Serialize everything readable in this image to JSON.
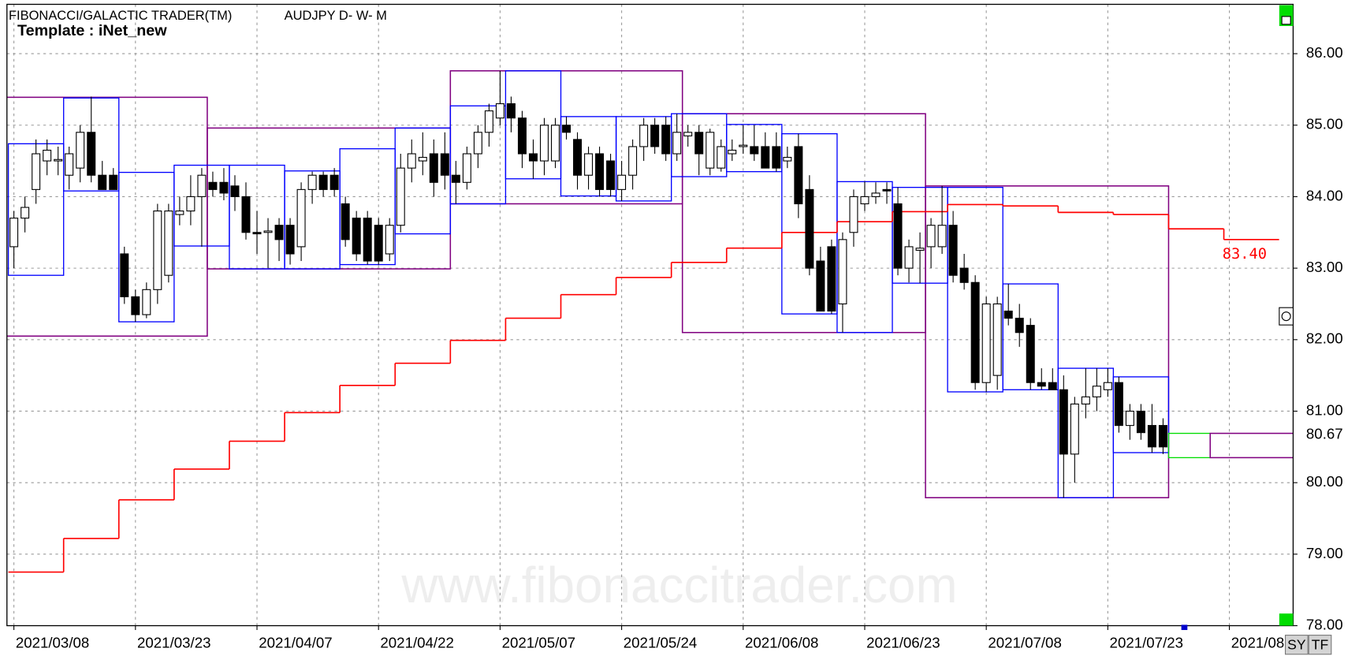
{
  "header": {
    "title": "FIBONACCI/GALACTIC TRADER(TM)",
    "symbol": "AUDJPY D- W- M",
    "template": "Template : iNet_new"
  },
  "watermark": "www.fibonaccitrader.com",
  "buttons": [
    "SY",
    "TF"
  ],
  "chart_data": {
    "type": "candlestick",
    "candles": [
      [
        83.3,
        83.8,
        83.0,
        83.7
      ],
      [
        83.7,
        84.0,
        83.5,
        83.85
      ],
      [
        84.1,
        84.8,
        83.9,
        84.6
      ],
      [
        84.5,
        84.8,
        84.3,
        84.65
      ],
      [
        84.5,
        84.7,
        84.3,
        84.52
      ],
      [
        84.3,
        84.7,
        84.1,
        84.6
      ],
      [
        84.4,
        85.0,
        84.2,
        84.9
      ],
      [
        84.9,
        85.4,
        84.2,
        84.3
      ],
      [
        84.3,
        84.5,
        84.1,
        84.1
      ],
      [
        84.3,
        84.4,
        84.1,
        84.1
      ],
      [
        83.2,
        83.3,
        82.5,
        82.6
      ],
      [
        82.6,
        82.7,
        82.25,
        82.35
      ],
      [
        82.35,
        82.8,
        82.3,
        82.7
      ],
      [
        82.7,
        83.9,
        82.5,
        83.8
      ],
      [
        82.9,
        83.9,
        82.8,
        83.8
      ],
      [
        83.75,
        84.0,
        83.6,
        83.8
      ],
      [
        83.8,
        84.3,
        83.6,
        84.0
      ],
      [
        84.0,
        84.4,
        83.3,
        84.3
      ],
      [
        84.2,
        84.35,
        84.0,
        84.1
      ],
      [
        84.2,
        84.4,
        83.95,
        84.05
      ],
      [
        84.15,
        84.3,
        83.8,
        84.0
      ],
      [
        84.0,
        84.2,
        83.4,
        83.5
      ],
      [
        83.5,
        83.8,
        83.2,
        83.48
      ],
      [
        83.5,
        83.7,
        83.0,
        83.52
      ],
      [
        83.6,
        83.7,
        83.1,
        83.4
      ],
      [
        83.6,
        83.7,
        83.05,
        83.2
      ],
      [
        83.3,
        84.2,
        83.1,
        84.1
      ],
      [
        84.1,
        84.35,
        83.9,
        84.3
      ],
      [
        84.3,
        84.35,
        84.0,
        84.1
      ],
      [
        84.3,
        84.4,
        84.0,
        84.1
      ],
      [
        83.9,
        84.0,
        83.3,
        83.4
      ],
      [
        83.7,
        83.8,
        83.1,
        83.2
      ],
      [
        83.7,
        83.8,
        83.05,
        83.1
      ],
      [
        83.6,
        83.7,
        83.05,
        83.1
      ],
      [
        83.2,
        83.7,
        83.1,
        83.6
      ],
      [
        83.6,
        84.6,
        83.5,
        84.4
      ],
      [
        84.4,
        84.8,
        84.2,
        84.6
      ],
      [
        84.5,
        84.9,
        84.3,
        84.55
      ],
      [
        84.6,
        84.8,
        84.0,
        84.2
      ],
      [
        84.6,
        84.9,
        84.1,
        84.3
      ],
      [
        84.3,
        84.5,
        83.9,
        84.2
      ],
      [
        84.2,
        84.7,
        84.1,
        84.6
      ],
      [
        84.6,
        85.0,
        84.4,
        84.9
      ],
      [
        84.9,
        85.3,
        84.7,
        85.2
      ],
      [
        85.1,
        85.76,
        85.0,
        85.3
      ],
      [
        85.3,
        85.4,
        84.9,
        85.1
      ],
      [
        85.1,
        85.2,
        84.4,
        84.6
      ],
      [
        84.6,
        84.8,
        84.25,
        84.5
      ],
      [
        84.5,
        85.1,
        84.3,
        85.0
      ],
      [
        84.5,
        85.1,
        84.4,
        85.0
      ],
      [
        85.0,
        85.12,
        84.8,
        84.9
      ],
      [
        84.8,
        84.9,
        84.1,
        84.3
      ],
      [
        84.3,
        84.7,
        84.1,
        84.6
      ],
      [
        84.6,
        84.7,
        84.0,
        84.1
      ],
      [
        84.5,
        84.6,
        84.0,
        84.1
      ],
      [
        84.1,
        84.5,
        83.94,
        84.3
      ],
      [
        84.3,
        84.8,
        84.1,
        84.7
      ],
      [
        84.7,
        85.1,
        84.5,
        85.0
      ],
      [
        85.0,
        85.1,
        84.6,
        84.7
      ],
      [
        85.0,
        85.12,
        84.5,
        84.6
      ],
      [
        84.6,
        85.16,
        84.5,
        84.9
      ],
      [
        84.85,
        85.0,
        84.7,
        84.9
      ],
      [
        84.9,
        85.0,
        84.3,
        84.6
      ],
      [
        84.4,
        84.95,
        84.3,
        84.9
      ],
      [
        84.4,
        84.8,
        84.35,
        84.7
      ],
      [
        84.6,
        84.8,
        84.5,
        84.65
      ],
      [
        84.7,
        85.0,
        84.6,
        84.72
      ],
      [
        84.7,
        85.0,
        84.5,
        84.6
      ],
      [
        84.7,
        84.9,
        84.4,
        84.4
      ],
      [
        84.7,
        84.9,
        84.35,
        84.4
      ],
      [
        84.5,
        84.7,
        84.4,
        84.55
      ],
      [
        84.7,
        84.88,
        83.7,
        83.9
      ],
      [
        84.1,
        84.3,
        82.9,
        83.0
      ],
      [
        83.1,
        83.3,
        82.4,
        82.4
      ],
      [
        83.3,
        83.4,
        82.36,
        82.4
      ],
      [
        82.5,
        83.5,
        82.1,
        83.4
      ],
      [
        83.5,
        84.1,
        83.3,
        84.0
      ],
      [
        83.9,
        84.21,
        83.8,
        84.0
      ],
      [
        84.0,
        84.2,
        83.9,
        84.05
      ],
      [
        84.1,
        84.2,
        83.9,
        84.08
      ],
      [
        83.9,
        84.13,
        82.9,
        83.0
      ],
      [
        83.0,
        83.4,
        82.8,
        83.3
      ],
      [
        83.25,
        83.5,
        82.79,
        83.28
      ],
      [
        83.3,
        83.7,
        83.0,
        83.6
      ],
      [
        83.3,
        84.15,
        83.2,
        83.6
      ],
      [
        83.6,
        83.8,
        82.8,
        82.9
      ],
      [
        83.0,
        83.2,
        82.7,
        82.8
      ],
      [
        82.8,
        82.9,
        81.3,
        81.4
      ],
      [
        81.4,
        82.6,
        81.27,
        82.5
      ],
      [
        81.5,
        82.6,
        81.3,
        82.5
      ],
      [
        82.4,
        82.78,
        82.2,
        82.3
      ],
      [
        82.3,
        82.5,
        81.9,
        82.1
      ],
      [
        82.2,
        82.3,
        81.3,
        81.4
      ],
      [
        81.4,
        81.6,
        81.3,
        81.35
      ],
      [
        81.4,
        81.6,
        81.3,
        81.3
      ],
      [
        81.3,
        81.5,
        79.79,
        80.4
      ],
      [
        80.4,
        81.2,
        80.0,
        81.1
      ],
      [
        81.1,
        81.6,
        80.9,
        81.2
      ],
      [
        81.2,
        81.6,
        81.0,
        81.35
      ],
      [
        81.3,
        81.6,
        81.2,
        81.4
      ],
      [
        81.4,
        81.48,
        80.7,
        80.8
      ],
      [
        80.8,
        81.1,
        80.6,
        81.0
      ],
      [
        81.0,
        81.1,
        80.6,
        80.7
      ],
      [
        80.8,
        81.1,
        80.42,
        80.5
      ],
      [
        80.8,
        80.9,
        80.4,
        80.5
      ]
    ],
    "weekly_ranges": [
      [
        84.74,
        82.9
      ],
      [
        85.38,
        84.08
      ],
      [
        84.34,
        82.25
      ],
      [
        84.44,
        83.31
      ],
      [
        84.44,
        82.99
      ],
      [
        84.36,
        82.99
      ],
      [
        84.67,
        83.05
      ],
      [
        84.96,
        83.48
      ],
      [
        85.27,
        83.9
      ],
      [
        85.76,
        84.25
      ],
      [
        85.12,
        84.01
      ],
      [
        85.12,
        83.94
      ],
      [
        85.16,
        84.28
      ],
      [
        85.01,
        84.35
      ],
      [
        84.88,
        82.36
      ],
      [
        84.21,
        82.1
      ],
      [
        84.13,
        82.79
      ],
      [
        84.13,
        81.27
      ],
      [
        82.78,
        81.3
      ],
      [
        81.6,
        79.79
      ],
      [
        81.48,
        80.42
      ]
    ],
    "monthly_ranges": [
      {
        "high": 85.39,
        "low": 82.05,
        "first_day": -5,
        "last_day": 17
      },
      {
        "high": 84.96,
        "low": 82.99,
        "first_day": 18,
        "last_day": 39
      },
      {
        "high": 85.76,
        "low": 83.9,
        "first_day": 40,
        "last_day": 60
      },
      {
        "high": 85.16,
        "low": 82.1,
        "first_day": 61,
        "last_day": 82
      },
      {
        "high": 84.15,
        "low": 79.79,
        "first_day": 83,
        "last_day": 104
      }
    ],
    "weekly_line": {
      "color": "#ff0000",
      "values": [
        78.75,
        79.22,
        79.76,
        80.19,
        80.58,
        80.98,
        81.36,
        81.67,
        81.99,
        82.3,
        82.63,
        82.87,
        83.08,
        83.28,
        83.5,
        83.65,
        83.79,
        83.89,
        83.87,
        83.78,
        83.75,
        83.55,
        83.4
      ],
      "end_label": {
        "value": 83.4,
        "label": "83.40"
      }
    },
    "projection": {
      "high": 80.69,
      "low": 80.35
    },
    "last_price": 80.67,
    "colors": {
      "weekly": "#0000ff",
      "monthly": "#800080",
      "projection": "#00dd00",
      "up": "#ffffff",
      "down": "#000000"
    },
    "xlim": [
      -0.63,
      115.77
    ],
    "ylim": [
      78,
      86.69
    ],
    "yticks": [
      {
        "value": 78,
        "label": "78.00"
      },
      {
        "value": 79,
        "label": "79.00"
      },
      {
        "value": 80,
        "label": "80.00"
      },
      {
        "value": 81,
        "label": "81.00"
      },
      {
        "value": 82,
        "label": "82.00"
      },
      {
        "value": 83,
        "label": "83.00"
      },
      {
        "value": 84,
        "label": "84.00"
      },
      {
        "value": 85,
        "label": "85.00"
      },
      {
        "value": 86,
        "label": "86.00"
      }
    ],
    "xticks": [
      {
        "value": 0,
        "label": "2021/03/08"
      },
      {
        "value": 11,
        "label": "2021/03/23"
      },
      {
        "value": 22,
        "label": "2021/04/07"
      },
      {
        "value": 33,
        "label": "2021/04/22"
      },
      {
        "value": 44,
        "label": "2021/05/07"
      },
      {
        "value": 55,
        "label": "2021/05/24"
      },
      {
        "value": 66,
        "label": "2021/06/08"
      },
      {
        "value": 77,
        "label": "2021/06/23"
      },
      {
        "value": 88,
        "label": "2021/07/08"
      },
      {
        "value": 99,
        "label": "2021/07/23"
      },
      {
        "value": 110,
        "label": "2021/08"
      }
    ],
    "grid": true
  }
}
